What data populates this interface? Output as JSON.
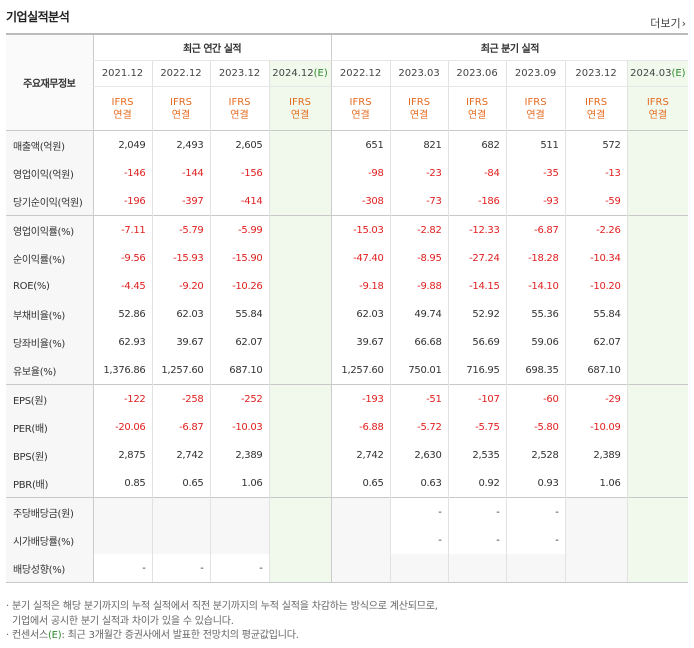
{
  "section_title": "기업실적분석",
  "more_label": "더보기",
  "more_icon": "chevron-right",
  "row_header_label": "주요재무정보",
  "annual_label": "최근 연간 실적",
  "quarter_label": "최근 분기 실적",
  "annual_periods": [
    "2021.12",
    "2022.12",
    "2023.12",
    "2024.12"
  ],
  "quarter_periods": [
    "2022.12",
    "2023.03",
    "2023.06",
    "2023.09",
    "2023.12",
    "2024.03"
  ],
  "estimate_mark": "(E)",
  "ifrs_label": "IFRS",
  "consolidated_label": "연결",
  "rows": [
    {
      "label": "매출액(억원)",
      "values": [
        "2,049",
        "2,493",
        "2,605",
        "",
        "651",
        "821",
        "682",
        "511",
        "572",
        ""
      ]
    },
    {
      "label": "영업이익(억원)",
      "values": [
        "-146",
        "-144",
        "-156",
        "",
        "-98",
        "-23",
        "-84",
        "-35",
        "-13",
        ""
      ]
    },
    {
      "label": "당기순이익(억원)",
      "values": [
        "-196",
        "-397",
        "-414",
        "",
        "-308",
        "-73",
        "-186",
        "-93",
        "-59",
        ""
      ]
    },
    {
      "label": "영업이익률(%)",
      "values": [
        "-7.11",
        "-5.79",
        "-5.99",
        "",
        "-15.03",
        "-2.82",
        "-12.33",
        "-6.87",
        "-2.26",
        ""
      ]
    },
    {
      "label": "순이익률(%)",
      "values": [
        "-9.56",
        "-15.93",
        "-15.90",
        "",
        "-47.40",
        "-8.95",
        "-27.24",
        "-18.28",
        "-10.34",
        ""
      ]
    },
    {
      "label": "ROE(%)",
      "values": [
        "-4.45",
        "-9.20",
        "-10.26",
        "",
        "-9.18",
        "-9.88",
        "-14.15",
        "-14.10",
        "-10.20",
        ""
      ]
    },
    {
      "label": "부채비율(%)",
      "values": [
        "52.86",
        "62.03",
        "55.84",
        "",
        "62.03",
        "49.74",
        "52.92",
        "55.36",
        "55.84",
        ""
      ]
    },
    {
      "label": "당좌비율(%)",
      "values": [
        "62.93",
        "39.67",
        "62.07",
        "",
        "39.67",
        "66.68",
        "56.69",
        "59.06",
        "62.07",
        ""
      ]
    },
    {
      "label": "유보율(%)",
      "values": [
        "1,376.86",
        "1,257.60",
        "687.10",
        "",
        "1,257.60",
        "750.01",
        "716.95",
        "698.35",
        "687.10",
        ""
      ]
    },
    {
      "label": "EPS(원)",
      "values": [
        "-122",
        "-258",
        "-252",
        "",
        "-193",
        "-51",
        "-107",
        "-60",
        "-29",
        ""
      ]
    },
    {
      "label": "PER(배)",
      "values": [
        "-20.06",
        "-6.87",
        "-10.03",
        "",
        "-6.88",
        "-5.72",
        "-5.75",
        "-5.80",
        "-10.09",
        ""
      ]
    },
    {
      "label": "BPS(원)",
      "values": [
        "2,875",
        "2,742",
        "2,389",
        "",
        "2,742",
        "2,630",
        "2,535",
        "2,528",
        "2,389",
        ""
      ]
    },
    {
      "label": "PBR(배)",
      "values": [
        "0.85",
        "0.65",
        "1.06",
        "",
        "0.65",
        "0.63",
        "0.92",
        "0.93",
        "1.06",
        ""
      ]
    },
    {
      "label": "주당배당금(원)",
      "values": [
        "",
        "",
        "",
        "",
        "",
        "-",
        "-",
        "-",
        "",
        ""
      ]
    },
    {
      "label": "시가배당률(%)",
      "values": [
        "",
        "",
        "",
        "",
        "",
        "-",
        "-",
        "-",
        "",
        ""
      ]
    },
    {
      "label": "배당성향(%)",
      "values": [
        "-",
        "-",
        "-",
        "",
        "",
        "",
        "",
        "",
        "",
        ""
      ]
    }
  ],
  "footer": {
    "line1": "· 분기 실적은 해당 분기까지의 누적 실적에서 직전 분기까지의 누적 실적을 차감하는 방식으로 계산되므로,",
    "line2": "  기업에서 공시한 분기 실적과 차이가 있을 수 있습니다.",
    "line3_prefix": "· 컨센서스",
    "line3_mark": "(E)",
    "line3_suffix": ": 최근 3개월간 증권사에서 발표한 전망치의 평균값입니다."
  },
  "colors": {
    "negative": "#e02020",
    "ifrs": "#e46b1f",
    "estimate_bg": "#f1f9ec",
    "estimate_mark": "#2f8a2f"
  }
}
